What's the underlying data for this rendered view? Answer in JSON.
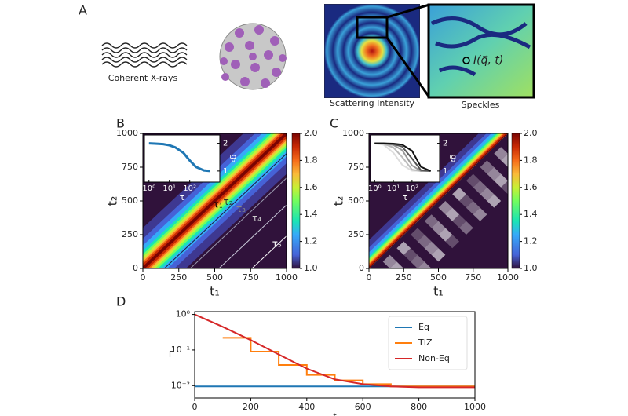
{
  "panel_a": {
    "label": "A",
    "beam_label": "Coherent X-rays",
    "scatter_label": "Scattering Intensity",
    "speckle_label": "Speckles",
    "intensity_label": "I(q⃗, t)"
  },
  "chart_data": [
    {
      "type": "heatmap",
      "panel": "B",
      "xlabel": "t₁",
      "ylabel": "t₂",
      "xlim": [
        0,
        1000
      ],
      "ylim": [
        0,
        1000
      ],
      "xticks": [
        0,
        250,
        500,
        750,
        1000
      ],
      "yticks": [
        0,
        250,
        500,
        750,
        1000
      ],
      "clim": [
        1,
        2
      ],
      "cticks": [
        {
          "value": 1,
          "label": "1.0"
        },
        {
          "value": 1.2,
          "label": "1.2"
        },
        {
          "value": 1.4,
          "label": "1.4"
        },
        {
          "value": 1.6,
          "label": "1.6"
        },
        {
          "value": 1.8,
          "label": "1.8"
        },
        {
          "value": 2,
          "label": "2.0"
        }
      ],
      "annotations": [
        "τ₁",
        "τ₂",
        "τ₃",
        "τ₄",
        "τ₅"
      ],
      "inset": {
        "xlabel": "τ",
        "ylabel": "g₂",
        "log_x": true,
        "xlim": [
          0.6,
          3000
        ],
        "ylim": [
          0.6,
          2.3
        ],
        "xticks": [
          {
            "value": 1,
            "label": "10⁰"
          },
          {
            "value": 10,
            "label": "10¹"
          },
          {
            "value": 100,
            "label": "10²"
          }
        ],
        "yticks": [
          1,
          2
        ],
        "x": [
          1,
          2,
          5,
          10,
          20,
          50,
          100,
          200,
          500,
          1000
        ],
        "series": [
          {
            "color": "#1f77b4",
            "values": [
              2,
              1.99,
              1.97,
              1.93,
              1.85,
              1.65,
              1.38,
              1.15,
              1.02,
              1
            ]
          }
        ]
      }
    },
    {
      "type": "heatmap",
      "panel": "C",
      "xlabel": "t₁",
      "ylabel": "t₂",
      "upper_only": true,
      "xlim": [
        0,
        1000
      ],
      "ylim": [
        0,
        1000
      ],
      "xticks": [
        0,
        250,
        500,
        750,
        1000
      ],
      "yticks": [
        0,
        250,
        500,
        750,
        1000
      ],
      "clim": [
        1,
        2
      ],
      "cticks": [
        {
          "value": 1,
          "label": "1.0"
        },
        {
          "value": 1.2,
          "label": "1.2"
        },
        {
          "value": 1.4,
          "label": "1.4"
        },
        {
          "value": 1.6,
          "label": "1.6"
        },
        {
          "value": 1.8,
          "label": "1.8"
        },
        {
          "value": 2,
          "label": "2.0"
        }
      ],
      "inset": {
        "xlabel": "τ",
        "ylabel": "g₂",
        "log_x": true,
        "xlim": [
          0.6,
          3000
        ],
        "ylim": [
          0.6,
          2.3
        ],
        "xticks": [
          {
            "value": 1,
            "label": "10⁰"
          },
          {
            "value": 10,
            "label": "10¹"
          },
          {
            "value": 100,
            "label": "10²"
          }
        ],
        "yticks": [
          1,
          2
        ],
        "x": [
          1,
          3,
          10,
          30,
          100,
          300,
          1000
        ],
        "series": [
          {
            "color": "#dddddd",
            "values": [
              1.99,
              1.95,
              1.66,
              1.22,
              1.01,
              1,
              1
            ]
          },
          {
            "color": "#bbbbbb",
            "values": [
              2,
              1.98,
              1.85,
              1.5,
              1.05,
              1,
              1
            ]
          },
          {
            "color": "#999999",
            "values": [
              2,
              1.99,
              1.94,
              1.75,
              1.2,
              1,
              1
            ]
          },
          {
            "color": "#555555",
            "values": [
              2,
              2,
              1.97,
              1.88,
              1.45,
              1.03,
              1
            ]
          },
          {
            "color": "#111111",
            "values": [
              2,
              2,
              1.99,
              1.95,
              1.73,
              1.15,
              1
            ]
          }
        ]
      }
    },
    {
      "type": "line",
      "panel": "D",
      "xlabel": "t",
      "ylabel": "Γ",
      "log_y": true,
      "legend": "upper right",
      "xlim": [
        0,
        1000
      ],
      "ylim": [
        0.0045,
        1.2
      ],
      "xticks": [
        0,
        200,
        400,
        600,
        800,
        1000
      ],
      "yticks": [
        {
          "value": 1,
          "label": "10⁰"
        },
        {
          "value": 0.1,
          "label": "10⁻¹"
        },
        {
          "value": 0.01,
          "label": "10⁻²"
        }
      ],
      "series": [
        {
          "name": "Eq",
          "color": "#1f77b4",
          "x": [
            0,
            1000
          ],
          "values": [
            0.0095,
            0.0095
          ]
        },
        {
          "name": "TIZ",
          "color": "#ff7f0e",
          "x": [
            100,
            200,
            200,
            300,
            300,
            400,
            400,
            500,
            500,
            600,
            600,
            700,
            700,
            1000
          ],
          "values": [
            0.22,
            0.22,
            0.09,
            0.09,
            0.038,
            0.038,
            0.02,
            0.02,
            0.014,
            0.014,
            0.011,
            0.011,
            0.0095,
            0.0095
          ]
        },
        {
          "name": "Non-Eq",
          "color": "#d62728",
          "x": [
            0,
            100,
            200,
            300,
            400,
            500,
            600,
            700,
            800,
            900,
            1000
          ],
          "values": [
            1,
            0.45,
            0.19,
            0.075,
            0.03,
            0.015,
            0.011,
            0.0095,
            0.009,
            0.009,
            0.009
          ]
        }
      ]
    }
  ]
}
